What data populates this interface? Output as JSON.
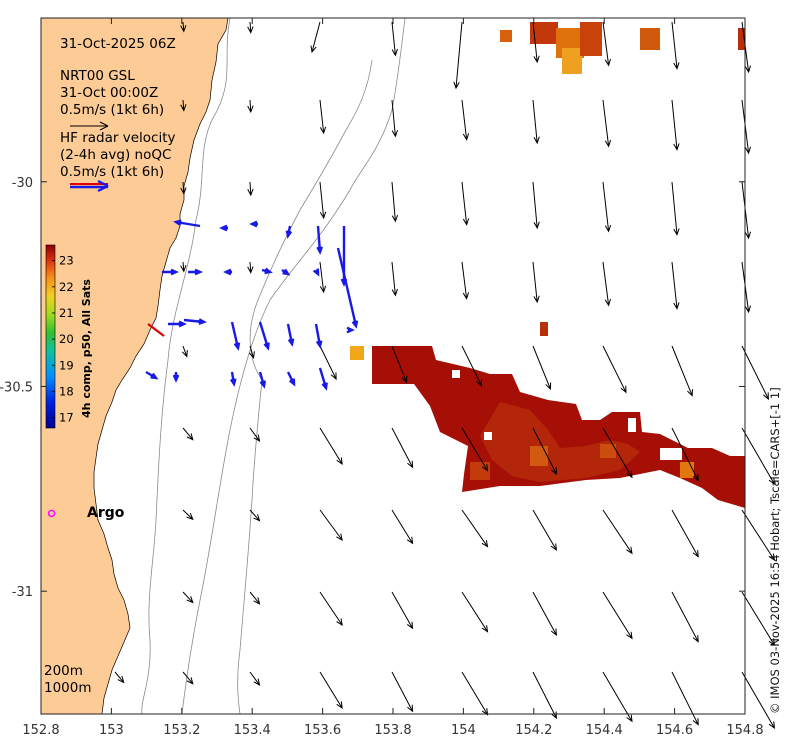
{
  "title": "31-Oct-2025 06Z",
  "model": {
    "name": "NRT00 GSL",
    "time": "31-Oct 00:00Z",
    "scale": "0.5m/s (1kt 6h)"
  },
  "radar": {
    "line1": "HF radar velocity",
    "line2": "(2-4h avg) noQC",
    "scale": "0.5m/s (1kt 6h)"
  },
  "colorbar": {
    "label": "4h comp, p50, All Sats",
    "ticks": [
      "17",
      "18",
      "19",
      "20",
      "21",
      "22",
      "23"
    ]
  },
  "argo_label": "Argo",
  "depth_labels": [
    "200m",
    "1000m"
  ],
  "credit": "© IMOS 03-Nov-2025 16:54 Hobart; Tscale=CARS+[-1 1]",
  "colors": {
    "land": "#FCCB96",
    "radar": "#1A1AE6",
    "sst_hot": "#A50F05",
    "argo": "#FF00FF"
  },
  "chart_data": {
    "type": "map",
    "xlim": [
      152.8,
      154.8
    ],
    "ylim": [
      -31.3,
      -29.6
    ],
    "x_ticks": [
      "152.8",
      "153",
      "153.2",
      "153.4",
      "153.6",
      "153.8",
      "154",
      "154.2",
      "154.4",
      "154.6",
      "154.8"
    ],
    "y_ticks": [
      {
        "label": "-30",
        "value": -30.0
      },
      {
        "label": "-30.5",
        "value": -30.5
      },
      {
        "label": "-31",
        "value": -31.0
      }
    ],
    "colorbar_range": [
      16.6,
      23.6
    ],
    "argo_float": {
      "lon": 152.83,
      "lat": -30.81
    }
  }
}
